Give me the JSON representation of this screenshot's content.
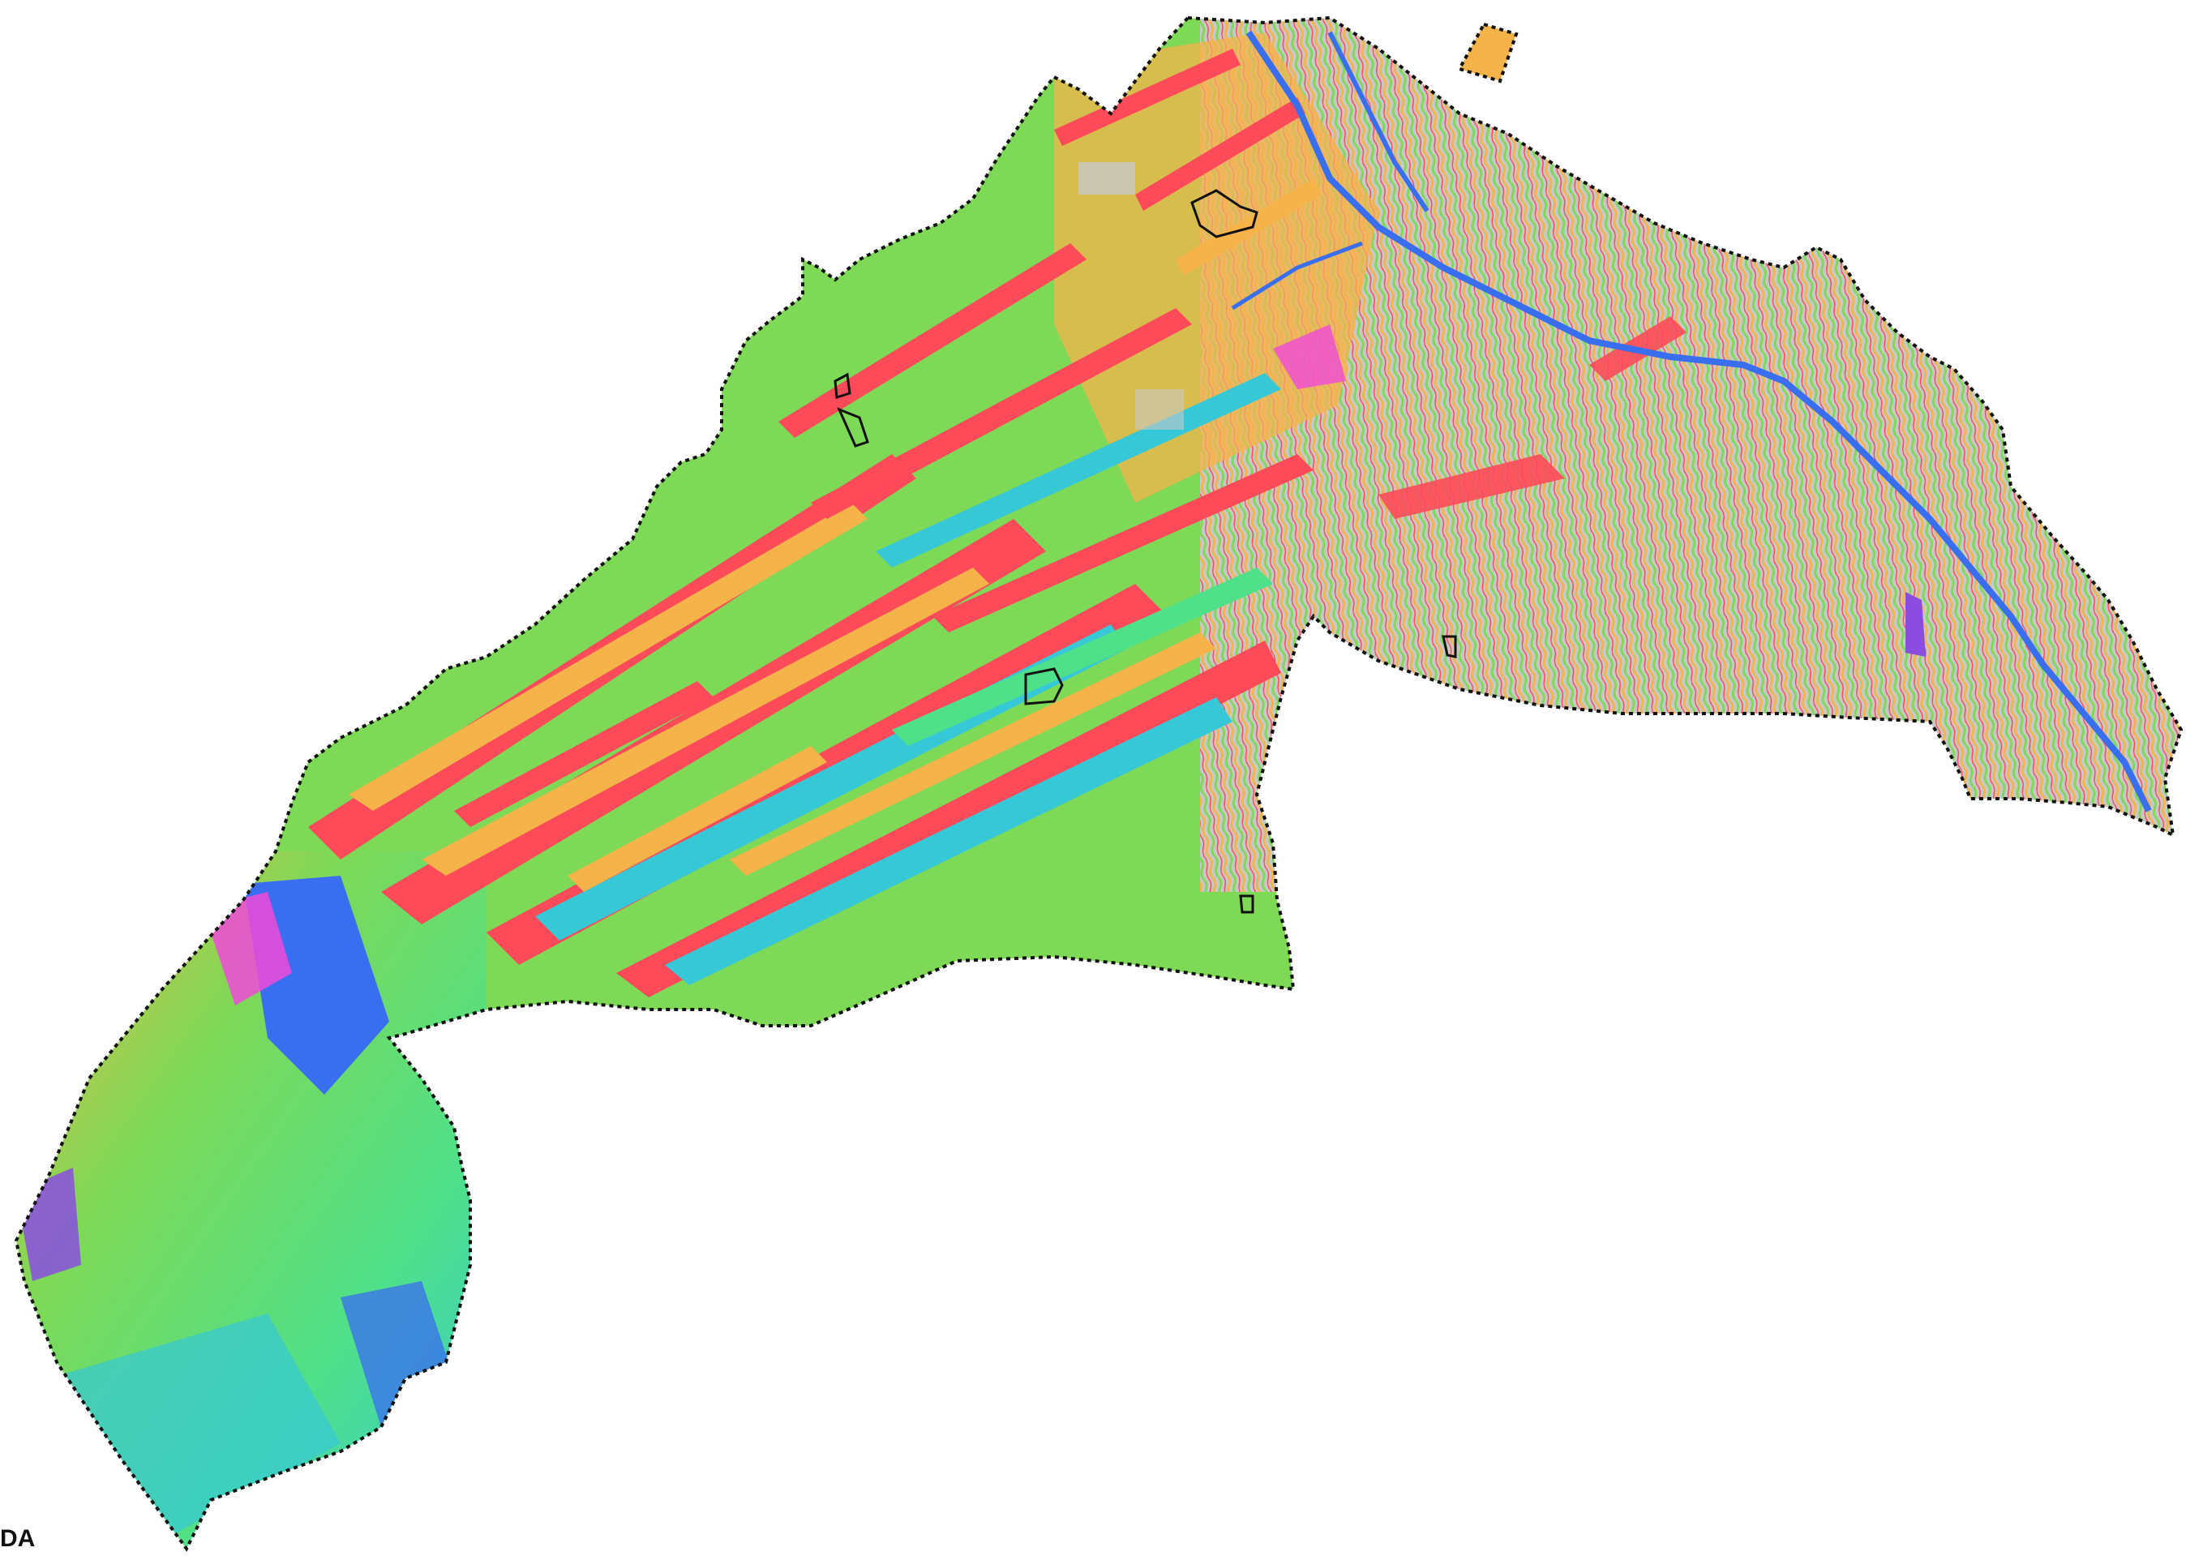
{
  "map": {
    "type": "slope-aspect raster map",
    "corner_label": "DA",
    "colors": {
      "flat": "#c8c8c8",
      "north": "#ff4a5a",
      "northeast": "#f5b34a",
      "east": "#7ed957",
      "southeast": "#4fe08a",
      "south": "#36c8d6",
      "southwest": "#3a6ef0",
      "west": "#8a4de0",
      "northwest": "#f04ad8",
      "boundary": "#111111",
      "parcel_outline": "#111111",
      "water_line": "#3a6ef0"
    },
    "parcels_outlined": 6
  }
}
